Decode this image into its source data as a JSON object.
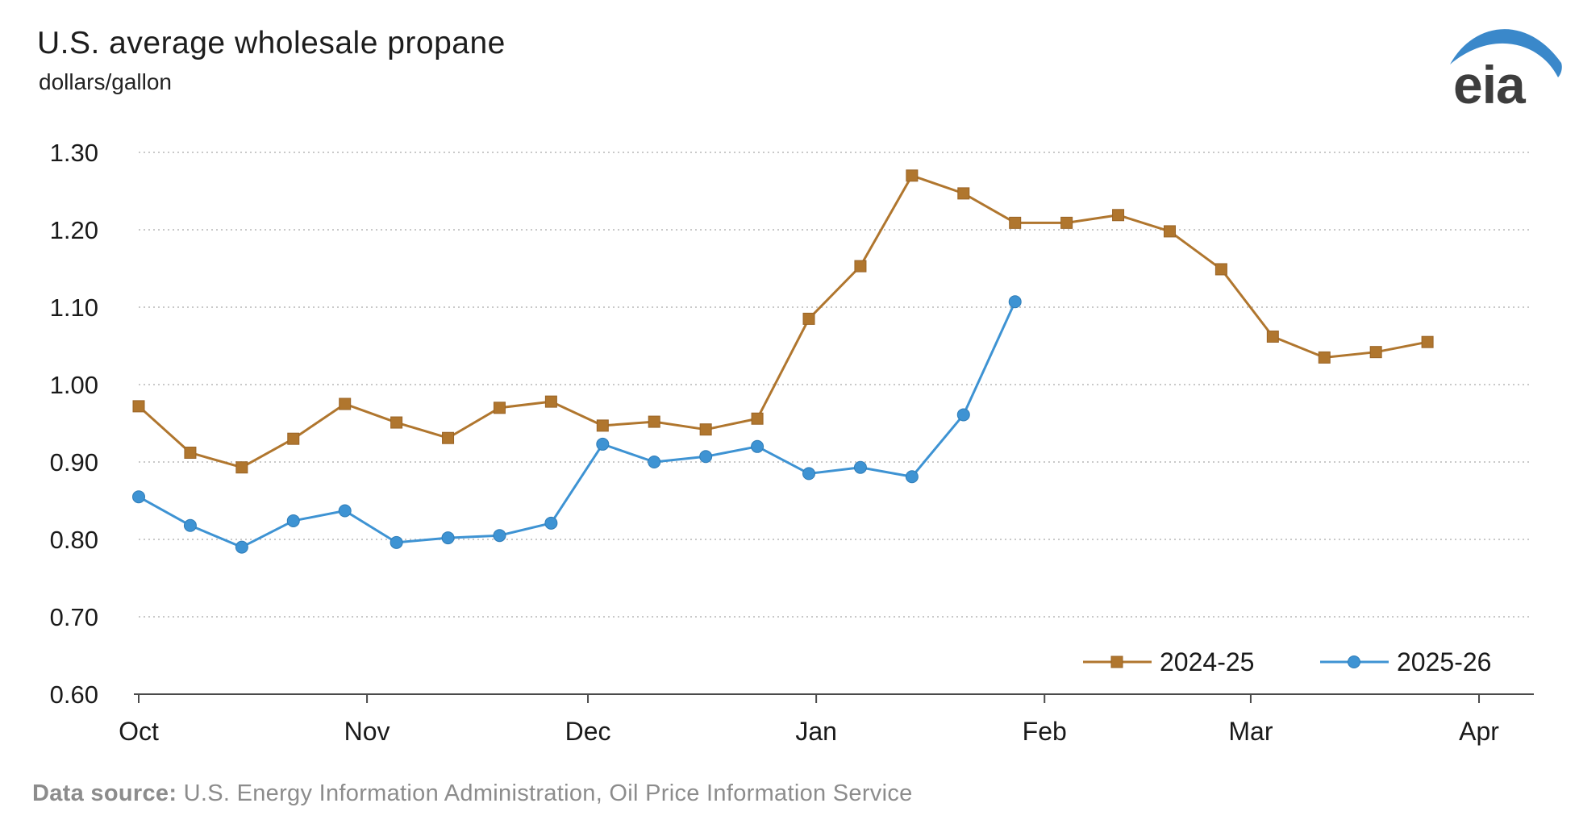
{
  "header": {
    "title": "U.S. average wholesale propane",
    "subtitle": "dollars/gallon"
  },
  "logo": {
    "text": "eia",
    "text_color": "#3d3d3d",
    "swoosh_color": "#3a88ca"
  },
  "footer": {
    "label": "Data source:",
    "text": " U.S. Energy Information Administration, Oil Price Information Service"
  },
  "colors": {
    "series_2024_25": "#b0762e",
    "series_2025_26": "#3e93d3",
    "gridline": "#c9c9c9",
    "axis": "#4a4a4a",
    "tick_text": "#1a1a1a",
    "footer_text": "#8c8c8c"
  },
  "chart_data": {
    "type": "line",
    "title": "U.S. average wholesale propane",
    "ylabel": "dollars/gallon",
    "ylim": [
      0.6,
      1.3
    ],
    "grid": "horizontal-dotted",
    "legend_position": "inside-bottom-right",
    "y_ticks": [
      {
        "value": 1.3,
        "label": "1.30"
      },
      {
        "value": 1.2,
        "label": "1.20"
      },
      {
        "value": 1.1,
        "label": "1.10"
      },
      {
        "value": 1.0,
        "label": "1.00"
      },
      {
        "value": 0.9,
        "label": "0.90"
      },
      {
        "value": 0.8,
        "label": "0.80"
      },
      {
        "value": 0.7,
        "label": "0.70"
      },
      {
        "value": 0.6,
        "label": "0.60"
      }
    ],
    "x_ticks": [
      {
        "day": 0,
        "label": "Oct"
      },
      {
        "day": 31,
        "label": "Nov"
      },
      {
        "day": 61,
        "label": "Dec"
      },
      {
        "day": 92,
        "label": "Jan"
      },
      {
        "day": 123,
        "label": "Feb"
      },
      {
        "day": 151,
        "label": "Mar"
      },
      {
        "day": 182,
        "label": "Apr"
      }
    ],
    "series": [
      {
        "name": "2024-25",
        "color": "#b0762e",
        "marker": "square",
        "x_days": [
          0,
          7,
          14,
          21,
          28,
          35,
          42,
          49,
          56,
          63,
          70,
          77,
          84,
          91,
          98,
          105,
          112,
          119,
          126,
          133,
          140,
          147,
          154,
          161,
          168,
          175
        ],
        "values": [
          0.972,
          0.912,
          0.893,
          0.93,
          0.975,
          0.951,
          0.931,
          0.97,
          0.978,
          0.947,
          0.952,
          0.942,
          0.956,
          1.085,
          1.153,
          1.27,
          1.247,
          1.209,
          1.209,
          1.219,
          1.198,
          1.149,
          1.062,
          1.035,
          1.042,
          1.055
        ]
      },
      {
        "name": "2025-26",
        "color": "#3e93d3",
        "marker": "circle",
        "x_days": [
          0,
          7,
          14,
          21,
          28,
          35,
          42,
          49,
          56,
          63,
          70,
          77,
          84,
          91,
          98,
          105,
          112,
          119
        ],
        "values": [
          0.855,
          0.818,
          0.79,
          0.824,
          0.837,
          0.796,
          0.802,
          0.805,
          0.821,
          0.923,
          0.9,
          0.907,
          0.92,
          0.885,
          0.893,
          0.881,
          0.961,
          1.107
        ]
      }
    ]
  }
}
